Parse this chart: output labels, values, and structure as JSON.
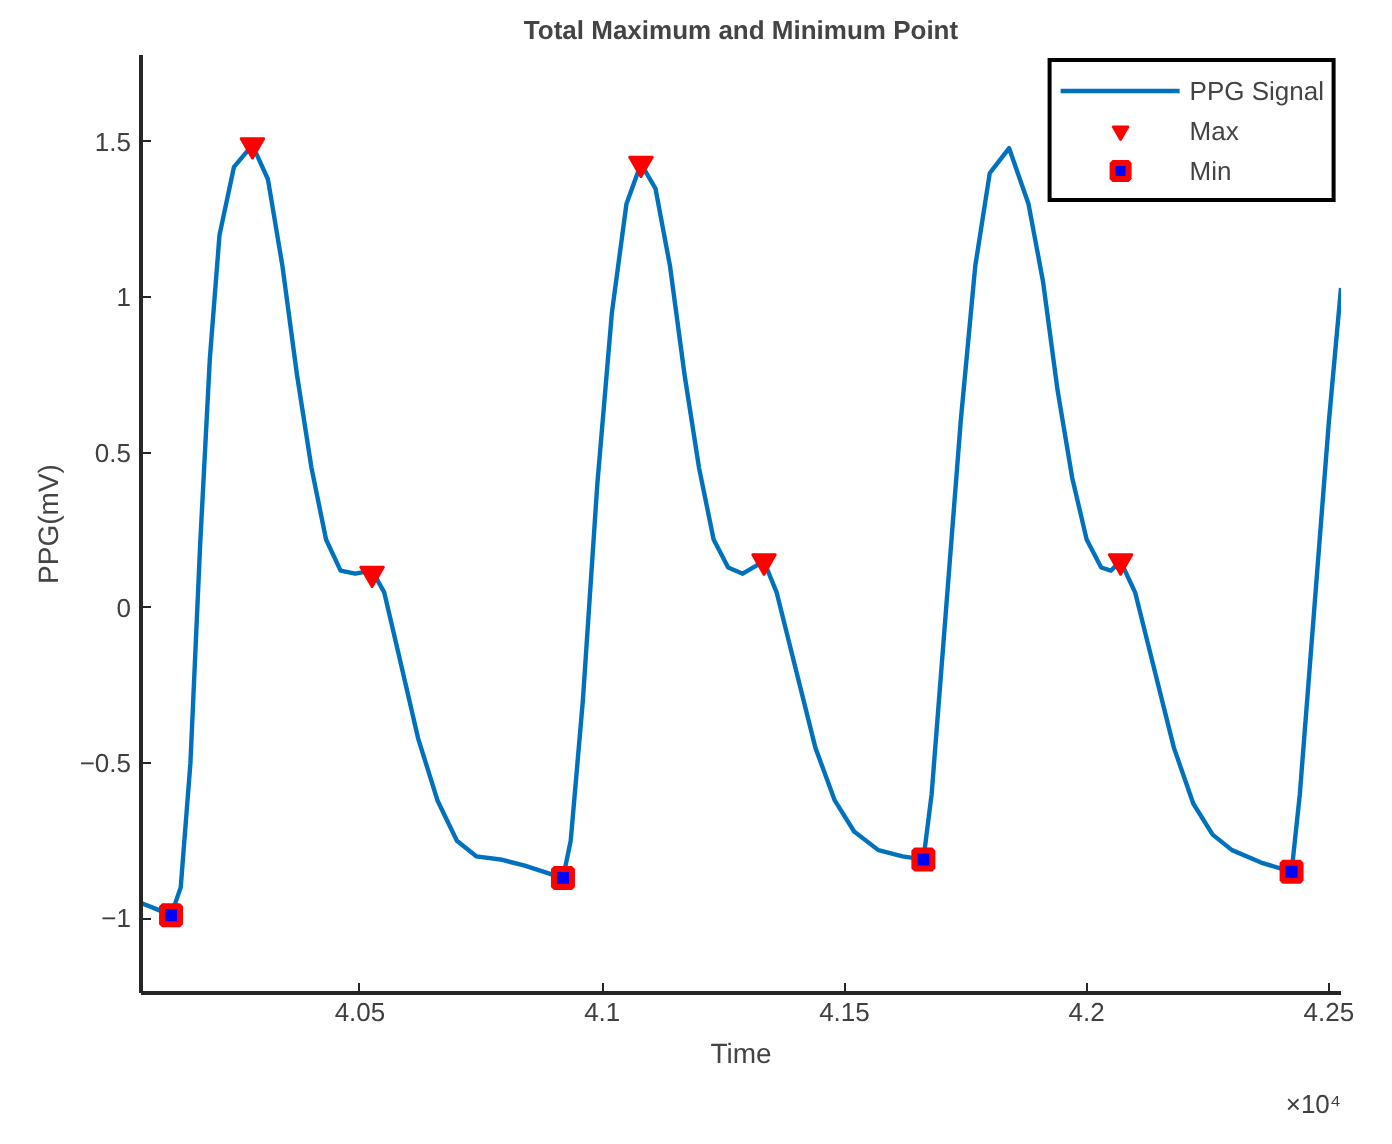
{
  "chart_data": {
    "type": "line",
    "title": "Total Maximum and Minimum Point",
    "xlabel": "Time",
    "ylabel": "PPG(mV)",
    "xlim": [
      4.0048,
      4.2525
    ],
    "ylim": [
      -1.24,
      1.78
    ],
    "xticks": [
      4.05,
      4.1,
      4.15,
      4.2,
      4.25
    ],
    "yticks": [
      -1,
      -0.5,
      0,
      0.5,
      1,
      1.5
    ],
    "grid": false,
    "legend": "top right",
    "annotations": [
      "×10⁴"
    ],
    "series": [
      {
        "name": "PPG Signal",
        "color": "#0072bd",
        "marker": "none",
        "line_style": "solid",
        "x": [
          4.0048,
          4.008,
          4.011,
          4.013,
          4.015,
          4.017,
          4.019,
          4.021,
          4.024,
          4.0278,
          4.031,
          4.034,
          4.037,
          4.04,
          4.043,
          4.046,
          4.049,
          4.0525,
          4.055,
          4.058,
          4.062,
          4.066,
          4.07,
          4.074,
          4.079,
          4.084,
          4.088,
          4.0919,
          4.0935,
          4.096,
          4.099,
          4.102,
          4.105,
          4.108,
          4.111,
          4.114,
          4.117,
          4.12,
          4.123,
          4.126,
          4.129,
          4.1334,
          4.136,
          4.14,
          4.144,
          4.148,
          4.152,
          4.157,
          4.162,
          4.1663,
          4.168,
          4.171,
          4.174,
          4.177,
          4.18,
          4.184,
          4.188,
          4.191,
          4.194,
          4.197,
          4.2,
          4.203,
          4.205,
          4.207,
          4.21,
          4.214,
          4.218,
          4.222,
          4.226,
          4.23,
          4.236,
          4.2423,
          4.244,
          4.247,
          4.25,
          4.2525
        ],
        "values": [
          -0.95,
          -0.97,
          -0.99,
          -0.9,
          -0.5,
          0.2,
          0.8,
          1.2,
          1.42,
          1.49,
          1.38,
          1.1,
          0.75,
          0.45,
          0.22,
          0.12,
          0.11,
          0.12,
          0.05,
          -0.15,
          -0.42,
          -0.62,
          -0.75,
          -0.8,
          -0.81,
          -0.83,
          -0.85,
          -0.87,
          -0.75,
          -0.3,
          0.4,
          0.95,
          1.3,
          1.43,
          1.35,
          1.1,
          0.75,
          0.45,
          0.22,
          0.13,
          0.11,
          0.15,
          0.05,
          -0.2,
          -0.45,
          -0.62,
          -0.72,
          -0.78,
          -0.8,
          -0.81,
          -0.6,
          0,
          0.6,
          1.1,
          1.4,
          1.48,
          1.3,
          1.05,
          0.7,
          0.42,
          0.22,
          0.13,
          0.12,
          0.15,
          0.05,
          -0.2,
          -0.45,
          -0.63,
          -0.73,
          -0.78,
          -0.82,
          -0.85,
          -0.6,
          0,
          0.6,
          1.03
        ]
      },
      {
        "name": "Max",
        "type": "scatter",
        "color": "#ff0000",
        "marker": "triangle",
        "x": [
          4.0278,
          4.0525,
          4.108,
          4.1334,
          4.207
        ],
        "values": [
          1.49,
          0.11,
          1.43,
          0.15,
          0.15
        ]
      },
      {
        "name": "Min",
        "type": "scatter",
        "color": "#0000ff",
        "marker": "square",
        "x": [
          4.011,
          4.0919,
          4.1663,
          4.2423
        ],
        "values": [
          -0.99,
          -0.87,
          -0.81,
          -0.85
        ]
      }
    ]
  }
}
